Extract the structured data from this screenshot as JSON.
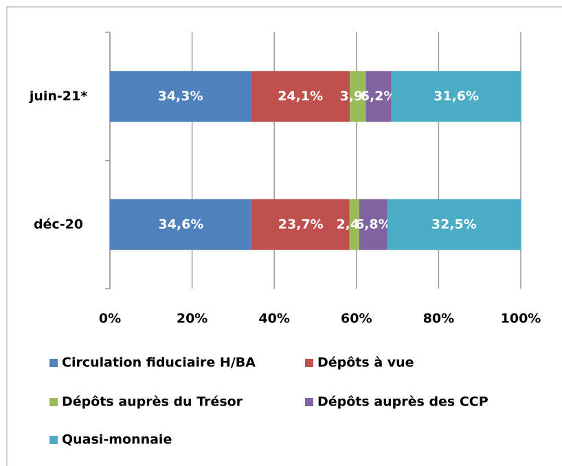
{
  "chart_data": {
    "type": "stacked_barh",
    "categories": [
      "juin-21*",
      "déc-20"
    ],
    "series": [
      {
        "name": "Circulation fiduciaire H/BA",
        "color": "#4f81bd",
        "values": [
          34.3,
          34.6
        ],
        "value_labels": [
          "34,3%",
          "34,6%"
        ]
      },
      {
        "name": "Dépôts à vue",
        "color": "#c0504d",
        "values": [
          24.1,
          23.7
        ],
        "value_labels": [
          "24,1%",
          "23,7%"
        ]
      },
      {
        "name": "Dépôts auprès du Trésor",
        "color": "#9bbb59",
        "values": [
          3.9,
          2.4
        ],
        "value_labels": [
          "3,9%",
          "2,4%"
        ]
      },
      {
        "name": "Dépôts auprès des CCP",
        "color": "#8064a2",
        "values": [
          6.2,
          6.8
        ],
        "value_labels": [
          "6,2%",
          "6,8%"
        ]
      },
      {
        "name": "Quasi-monnaie",
        "color": "#4bacc6",
        "values": [
          31.6,
          32.5
        ],
        "value_labels": [
          "31,6%",
          "32,5%"
        ]
      }
    ],
    "xlim": [
      0,
      100
    ],
    "xticks": [
      {
        "value": 0,
        "label": "0%"
      },
      {
        "value": 20,
        "label": "20%"
      },
      {
        "value": 40,
        "label": "40%"
      },
      {
        "value": 60,
        "label": "60%"
      },
      {
        "value": 80,
        "label": "80%"
      },
      {
        "value": 100,
        "label": "100%"
      }
    ],
    "grid": true
  }
}
